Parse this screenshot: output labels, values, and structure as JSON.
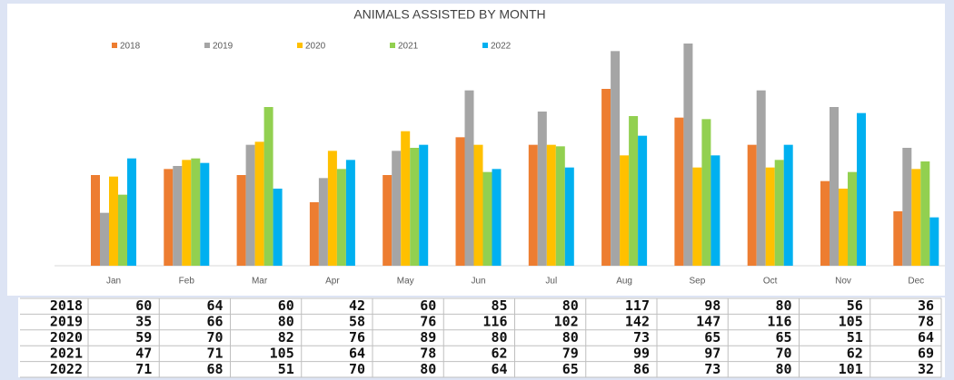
{
  "chart_data": {
    "type": "bar",
    "title": "ANIMALS ASSISTED BY MONTH",
    "categories": [
      "Jan",
      "Feb",
      "Mar",
      "Apr",
      "May",
      "Jun",
      "Jul",
      "Aug",
      "Sep",
      "Oct",
      "Nov",
      "Dec"
    ],
    "series": [
      {
        "name": "2018",
        "color": "#ed7d31",
        "values": [
          60,
          64,
          60,
          42,
          60,
          85,
          80,
          117,
          98,
          80,
          56,
          36
        ]
      },
      {
        "name": "2019",
        "color": "#a5a5a5",
        "values": [
          35,
          66,
          80,
          58,
          76,
          116,
          102,
          142,
          147,
          116,
          105,
          78
        ]
      },
      {
        "name": "2020",
        "color": "#ffc000",
        "values": [
          59,
          70,
          82,
          76,
          89,
          80,
          80,
          73,
          65,
          65,
          51,
          64
        ]
      },
      {
        "name": "2021",
        "color": "#92d050",
        "values": [
          47,
          71,
          105,
          64,
          78,
          62,
          79,
          99,
          97,
          70,
          62,
          69
        ]
      },
      {
        "name": "2022",
        "color": "#00b0f0",
        "values": [
          71,
          68,
          51,
          70,
          80,
          64,
          65,
          86,
          73,
          80,
          101,
          32
        ]
      }
    ],
    "ylim": [
      0,
      150
    ],
    "legend": "top"
  }
}
